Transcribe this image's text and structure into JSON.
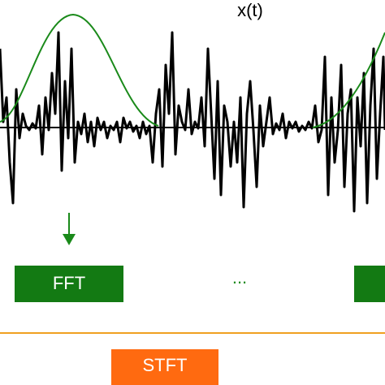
{
  "signal": {
    "label": "x(t)"
  },
  "windows": {
    "first": "FFT",
    "ellipsis": "...",
    "last": ""
  },
  "result": {
    "label": "STFT"
  }
}
